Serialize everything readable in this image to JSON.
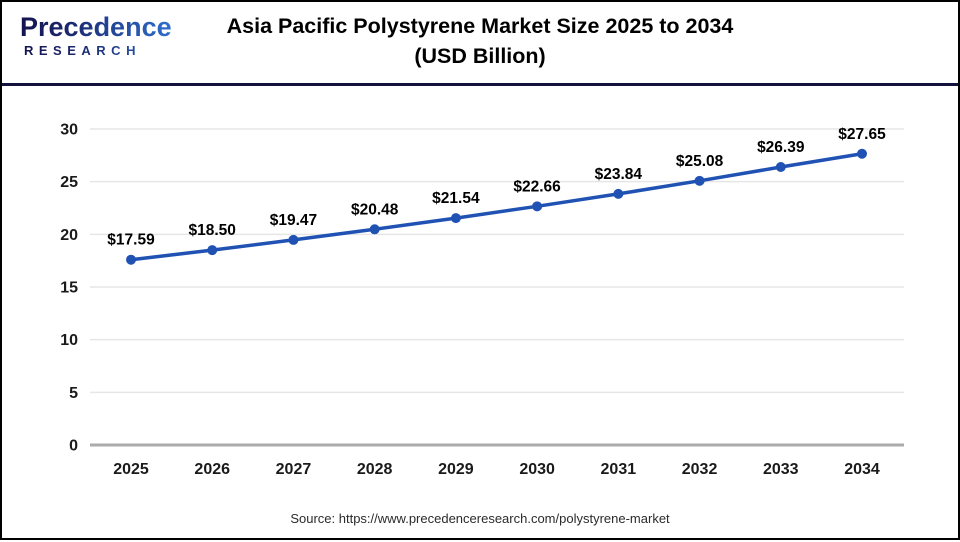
{
  "logo": {
    "name": "Precedence",
    "subname": "RESEARCH"
  },
  "header": {
    "title_line1": "Asia Pacific Polystyrene Market Size 2025 to 2034",
    "title_line2": "(USD Billion)"
  },
  "chart_data": {
    "type": "line",
    "title": "Asia Pacific Polystyrene Market Size 2025 to 2034",
    "subtitle": "(USD Billion)",
    "categories": [
      "2025",
      "2026",
      "2027",
      "2028",
      "2029",
      "2030",
      "2031",
      "2032",
      "2033",
      "2034"
    ],
    "series": [
      {
        "name": "Asia Pacific Polystyrene Market Size (USD Billion)",
        "values": [
          17.59,
          18.5,
          19.47,
          20.48,
          21.54,
          22.66,
          23.84,
          25.08,
          26.39,
          27.65
        ]
      }
    ],
    "data_labels": [
      "$17.59",
      "$18.50",
      "$19.47",
      "$20.48",
      "$21.54",
      "$22.66",
      "$23.84",
      "$25.08",
      "$26.39",
      "$27.65"
    ],
    "data_label_prefix": "$",
    "xlabel": "",
    "ylabel": "",
    "ylim": [
      0,
      30
    ],
    "yticks": [
      0,
      5,
      10,
      15,
      20,
      25,
      30
    ],
    "grid": true,
    "legend": "none",
    "line_color": "#2052B4",
    "marker_color": "#2052B4",
    "grid_color": "#e6e6e6",
    "axis_color": "#ababab",
    "tick_label_color": "#1a1a1a",
    "data_label_color": "#000000"
  },
  "footer": {
    "source": "Source: https://www.precedenceresearch.com/polystyrene-market"
  }
}
